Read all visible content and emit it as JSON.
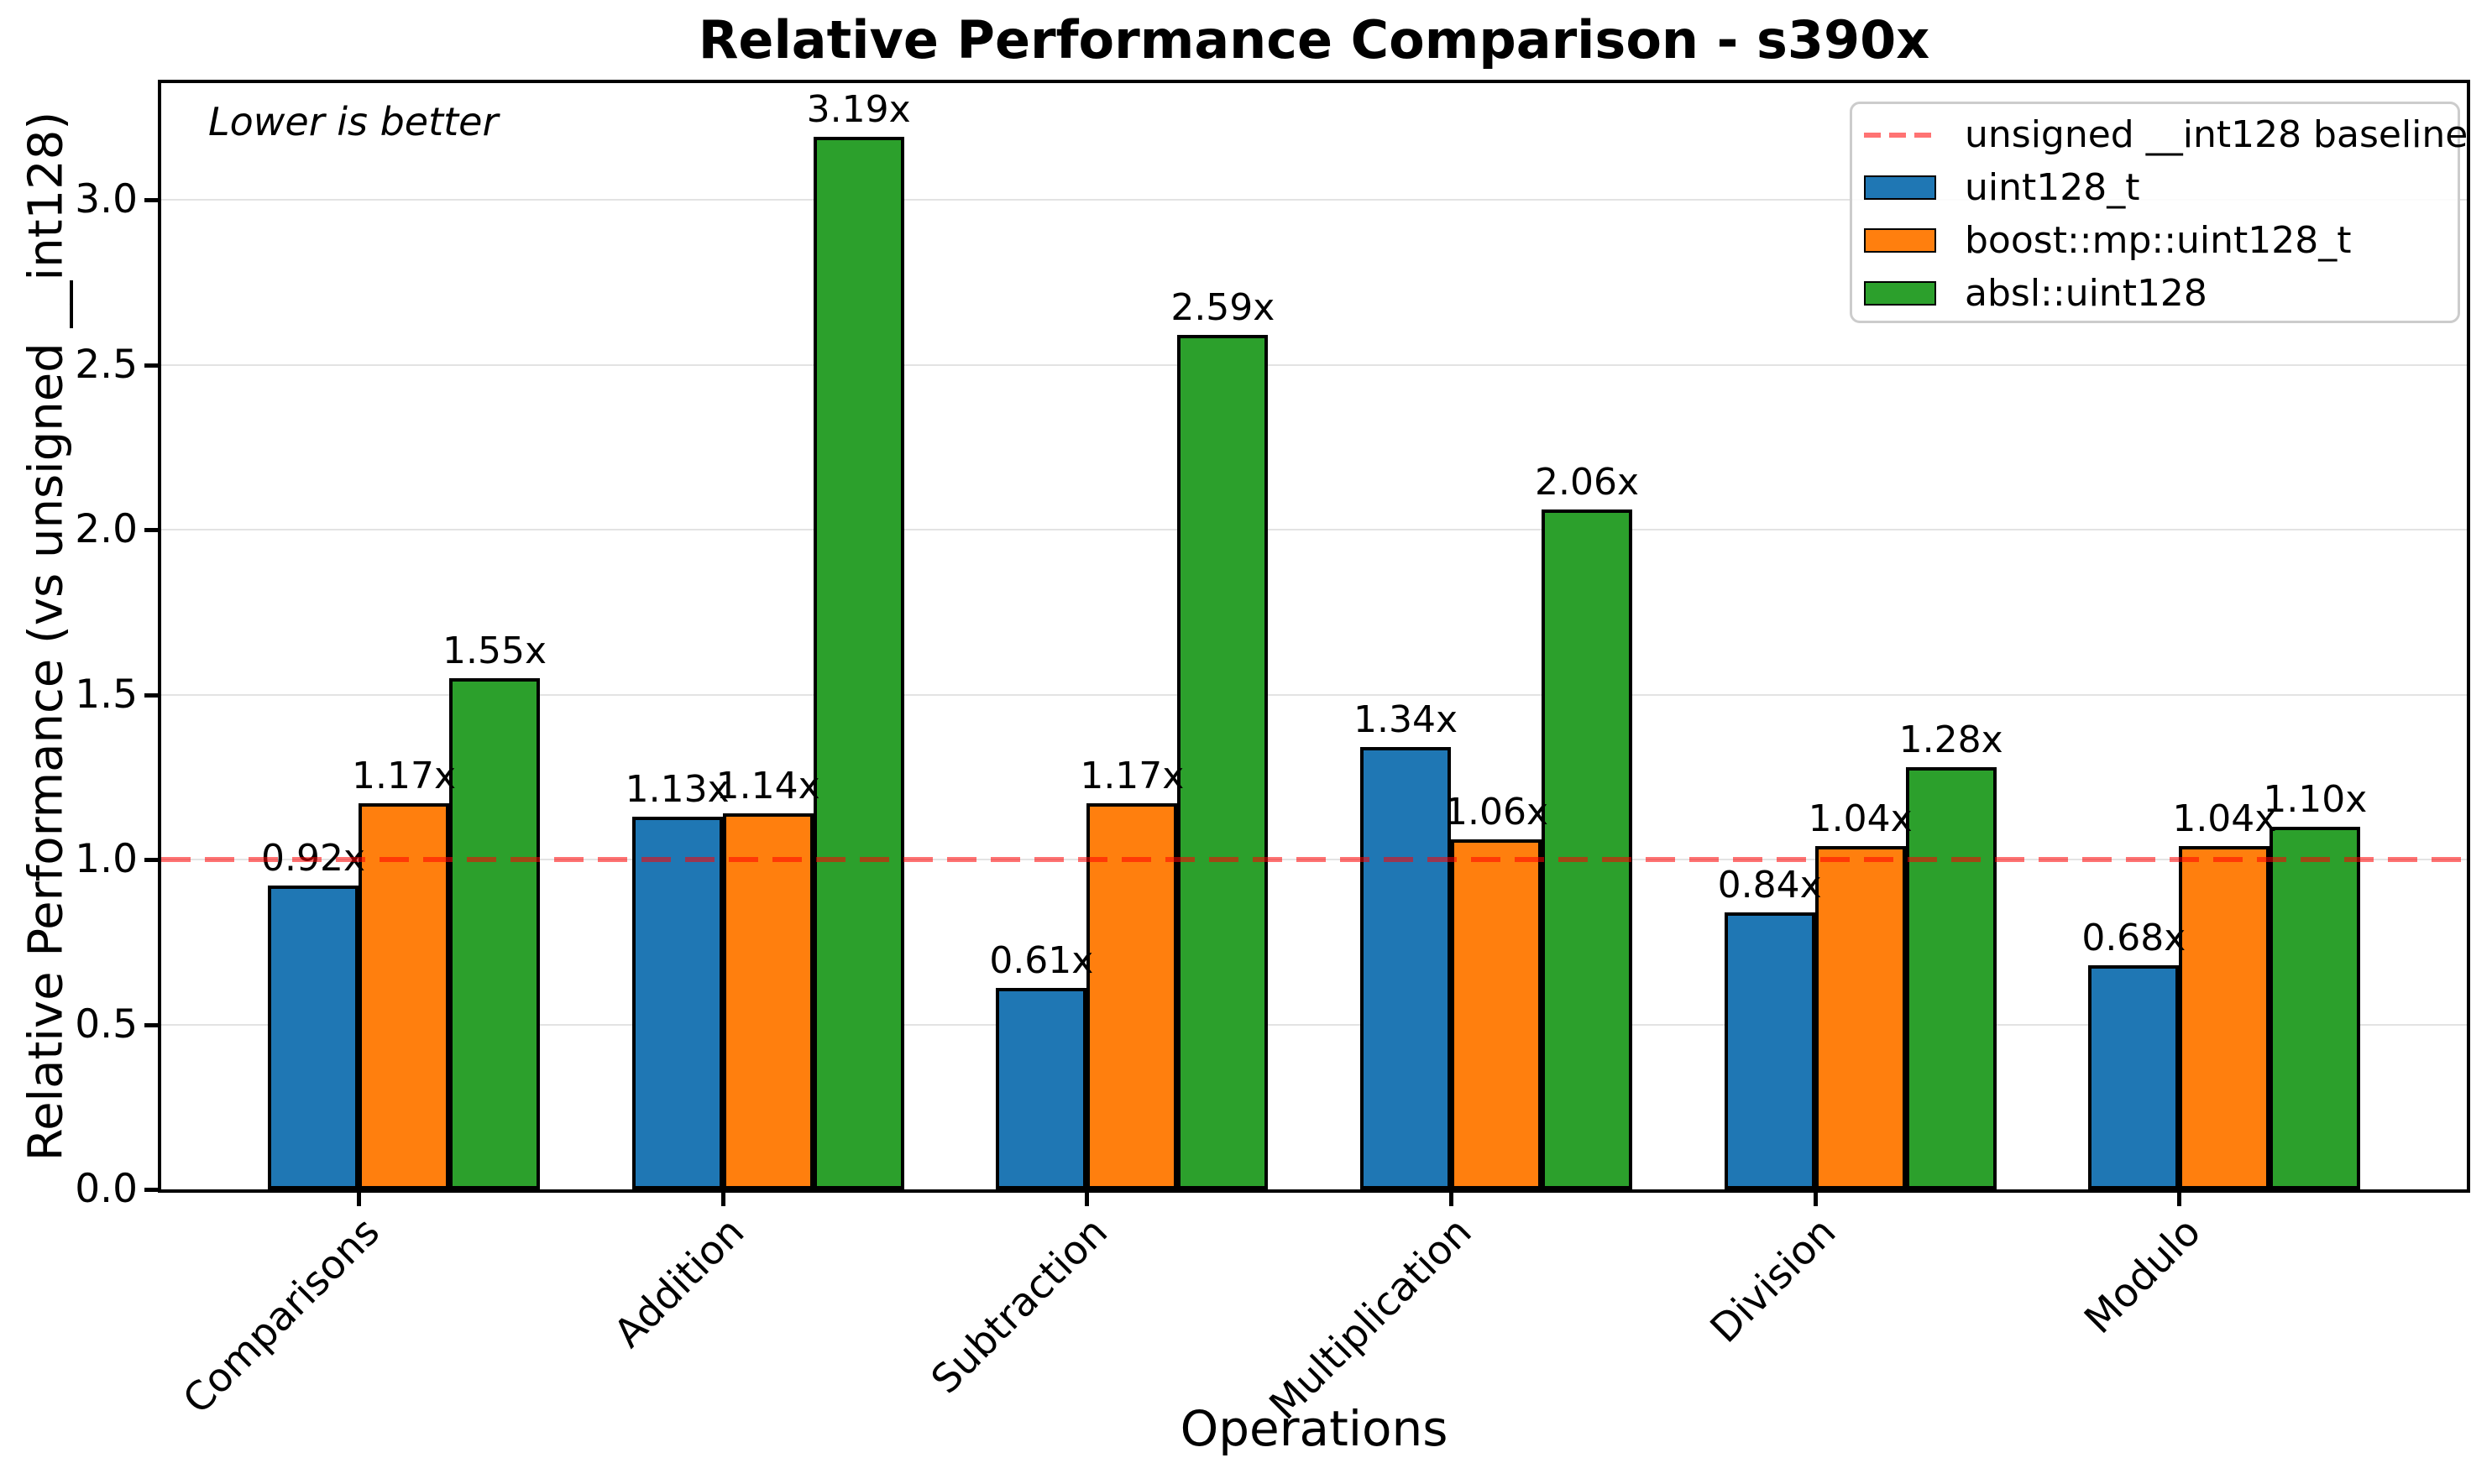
{
  "chart_data": {
    "type": "bar",
    "title": "Relative Performance Comparison - s390x",
    "xlabel": "Operations",
    "ylabel": "Relative Performance (vs unsigned __int128)",
    "annotation": "Lower is better",
    "categories": [
      "Comparisons",
      "Addition",
      "Subtraction",
      "Multiplication",
      "Division",
      "Modulo"
    ],
    "series": [
      {
        "name": "uint128_t",
        "color": "#1f77b4",
        "values": [
          0.92,
          1.13,
          0.61,
          1.34,
          0.84,
          0.68
        ]
      },
      {
        "name": "boost::mp::uint128_t",
        "color": "#ff7f0e",
        "values": [
          1.17,
          1.14,
          1.17,
          1.06,
          1.04,
          1.04
        ]
      },
      {
        "name": "absl::uint128",
        "color": "#2ca02c",
        "values": [
          1.55,
          3.19,
          2.59,
          2.06,
          1.28,
          1.1
        ]
      }
    ],
    "value_labels": [
      [
        "0.92x",
        "1.13x",
        "0.61x",
        "1.34x",
        "0.84x",
        "0.68x"
      ],
      [
        "1.17x",
        "1.14x",
        "1.17x",
        "1.06x",
        "1.04x",
        "1.04x"
      ],
      [
        "1.55x",
        "3.19x",
        "2.59x",
        "2.06x",
        "1.28x",
        "1.10x"
      ]
    ],
    "baseline": {
      "label": "unsigned __int128 baseline",
      "value": 1.0,
      "color": "#ff0000",
      "opacity": 0.55,
      "linestyle": "dashed"
    },
    "y_ticks": [
      "0.0",
      "0.5",
      "1.0",
      "1.5",
      "2.0",
      "2.5",
      "3.0"
    ],
    "ylim": [
      0,
      3.35
    ],
    "grid": true,
    "grid_color": "#e3e3e3",
    "legend_position": "upper right"
  }
}
